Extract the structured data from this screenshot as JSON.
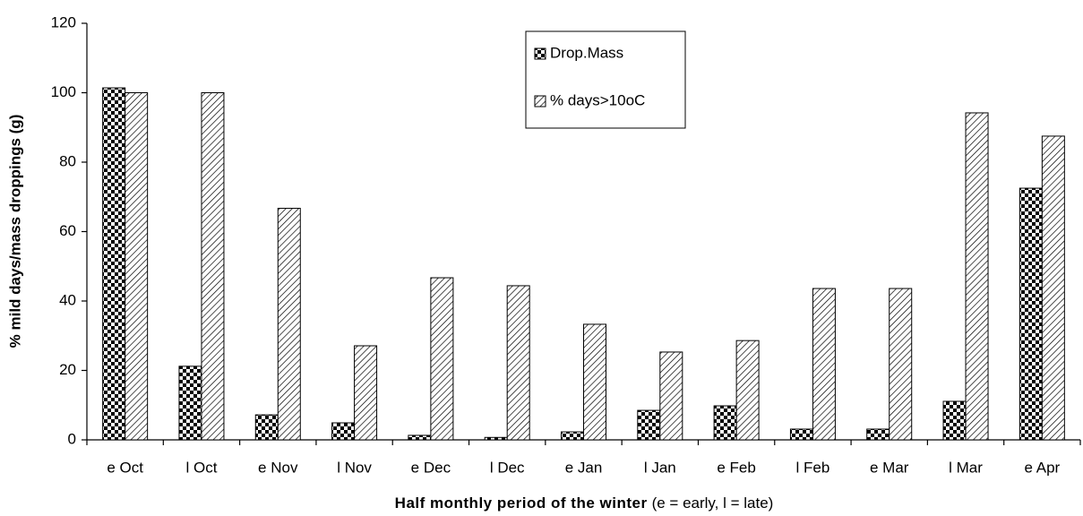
{
  "chart_data": {
    "type": "bar",
    "y_label": "% mild days/mass droppings (g)",
    "x_label": "Half monthly period of the winter",
    "x_label_note": "(e = early, l = late)",
    "categories": [
      "e Oct",
      "l Oct",
      "e Nov",
      "l Nov",
      "e Dec",
      "l Dec",
      "e Jan",
      "l Jan",
      "e Feb",
      "l Feb",
      "e Mar",
      "l Mar",
      "e Apr"
    ],
    "series": [
      {
        "name": "Drop.Mass",
        "color": "#000000",
        "pattern": "checker",
        "values": [
          101.4,
          21.2,
          7.2,
          4.9,
          1.3,
          0.7,
          2.3,
          8.5,
          9.8,
          3.1,
          3.1,
          11.1,
          72.5
        ]
      },
      {
        "name": "% days>10oC",
        "color": "#000000",
        "pattern": "hatch",
        "values": [
          100,
          100,
          66.7,
          27.1,
          46.7,
          44.4,
          33.3,
          25.3,
          28.6,
          43.6,
          43.6,
          94.2,
          87.5
        ]
      }
    ],
    "ylim": [
      0,
      120
    ],
    "yticks": [
      0,
      20,
      40,
      60,
      80,
      100,
      120
    ],
    "grid": false,
    "legend": "top-center"
  }
}
